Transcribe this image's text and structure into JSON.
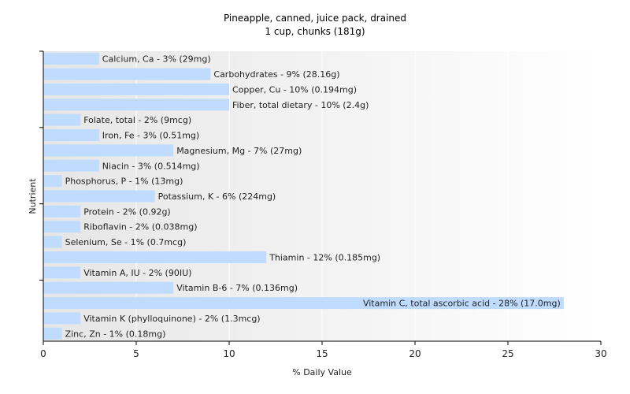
{
  "chart_data": {
    "type": "bar",
    "orientation": "horizontal",
    "title": "Pineapple, canned, juice pack, drained",
    "subtitle": "1 cup, chunks (181g)",
    "xlabel": "% Daily Value",
    "ylabel": "Nutrient",
    "xlim": [
      0,
      30
    ],
    "xticks": [
      "0",
      "5",
      "10",
      "15",
      "20",
      "25",
      "30"
    ],
    "grid": "vertical",
    "bar_color": "#bfdcff",
    "categories": [
      "Calcium, Ca",
      "Carbohydrates",
      "Copper, Cu",
      "Fiber, total dietary",
      "Folate, total",
      "Iron, Fe",
      "Magnesium, Mg",
      "Niacin",
      "Phosphorus, P",
      "Potassium, K",
      "Protein",
      "Riboflavin",
      "Selenium, Se",
      "Thiamin",
      "Vitamin A, IU",
      "Vitamin B-6",
      "Vitamin C, total ascorbic acid",
      "Vitamin K (phylloquinone)",
      "Zinc, Zn"
    ],
    "values": [
      3,
      9,
      10,
      10,
      2,
      3,
      7,
      3,
      1,
      6,
      2,
      2,
      1,
      12,
      2,
      7,
      28,
      2,
      1
    ],
    "labels": [
      "Calcium, Ca - 3% (29mg)",
      "Carbohydrates - 9% (28.16g)",
      "Copper, Cu - 10% (0.194mg)",
      "Fiber, total dietary - 10% (2.4g)",
      "Folate, total - 2% (9mcg)",
      "Iron, Fe - 3% (0.51mg)",
      "Magnesium, Mg - 7% (27mg)",
      "Niacin - 3% (0.514mg)",
      "Phosphorus, P - 1% (13mg)",
      "Potassium, K - 6% (224mg)",
      "Protein - 2% (0.92g)",
      "Riboflavin - 2% (0.038mg)",
      "Selenium, Se - 1% (0.7mcg)",
      "Thiamin - 12% (0.185mg)",
      "Vitamin A, IU - 2% (90IU)",
      "Vitamin B-6 - 7% (0.136mg)",
      "Vitamin C, total ascorbic acid - 28% (17.0mg)",
      "Vitamin K (phylloquinone) - 2% (1.3mcg)",
      "Zinc, Zn - 1% (0.18mg)"
    ]
  }
}
